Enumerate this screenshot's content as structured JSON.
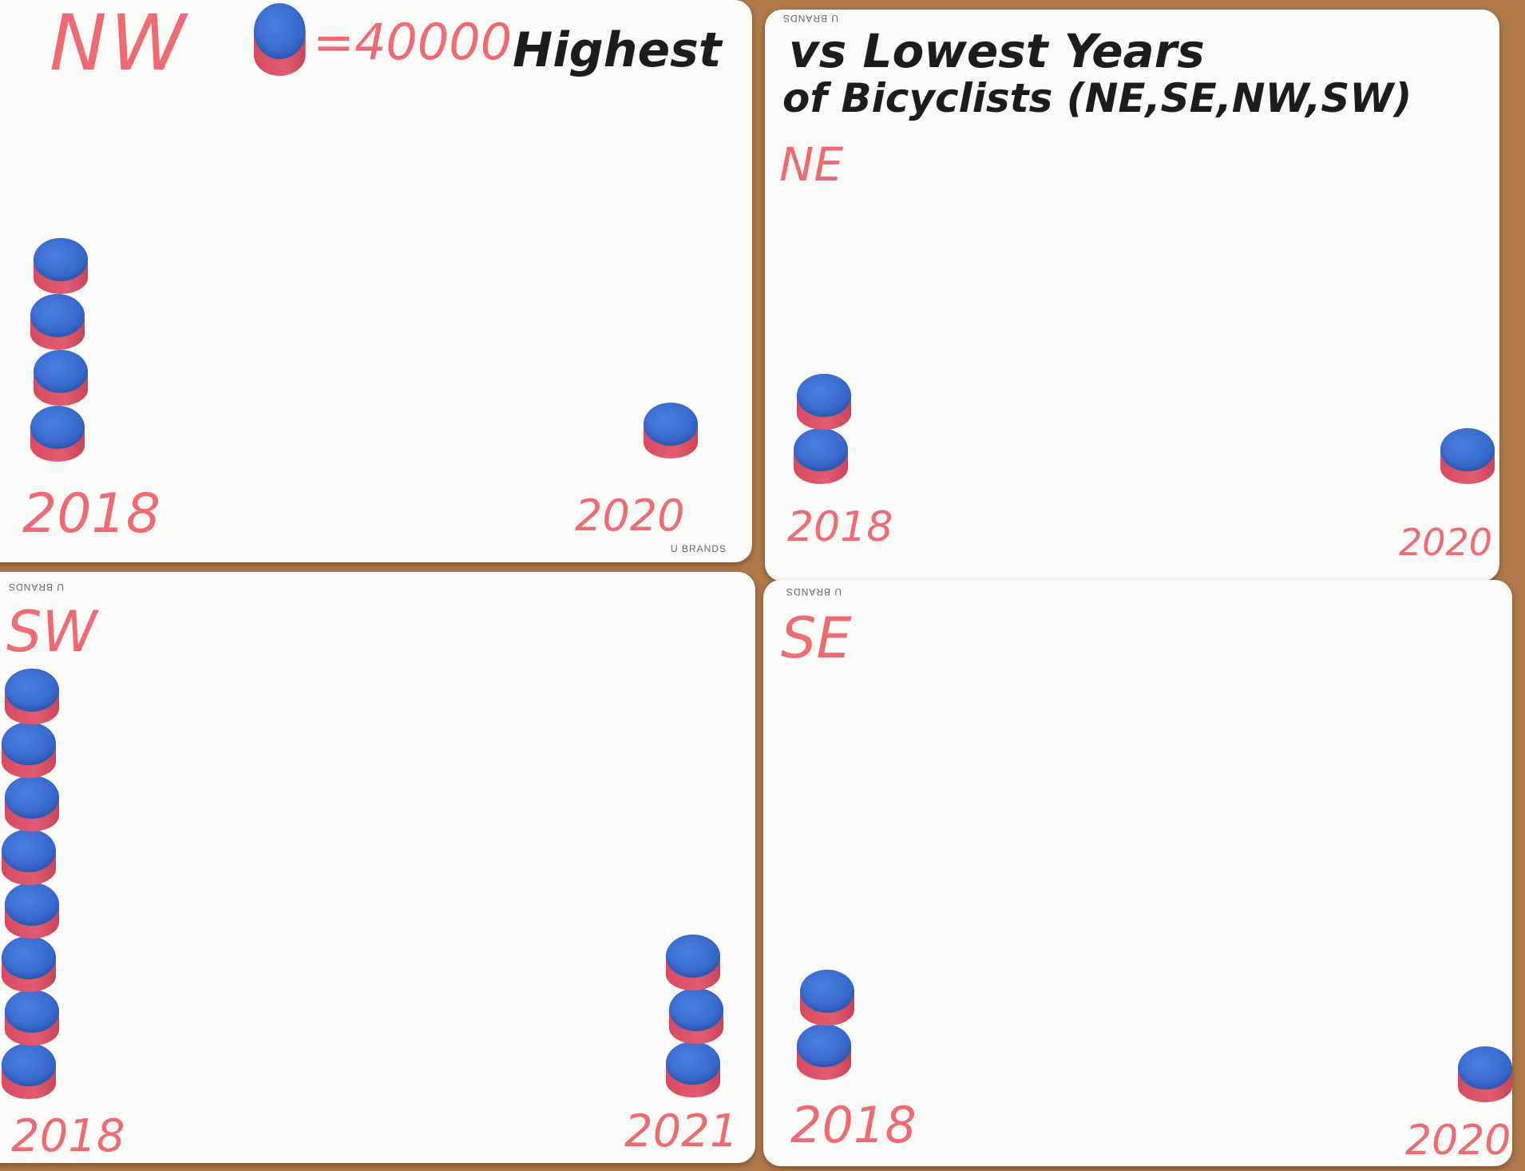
{
  "title": {
    "part1": "Highest",
    "part2": "vs Lowest Years",
    "part3": "of Bicyclists (NE,SE,NW,SW)"
  },
  "legend": {
    "equals_label": "=40000",
    "chip_top_color": "#3565c9",
    "chip_side_color": "#e15c70"
  },
  "brand_label": "U BRANDS",
  "colors": {
    "marker_red": "#ef6a72",
    "ink_black": "#1c1c1c",
    "board_white": "#fbfbf9",
    "table_wood": "#b07a4a"
  },
  "chart_data": [
    {
      "type": "bar",
      "region": "NW",
      "categories": [
        "2018",
        "2020"
      ],
      "values": [
        160000,
        40000
      ],
      "unit_per_chip": 40000
    },
    {
      "type": "bar",
      "region": "NE",
      "categories": [
        "2018",
        "2020"
      ],
      "values": [
        80000,
        40000
      ],
      "unit_per_chip": 40000
    },
    {
      "type": "bar",
      "region": "SW",
      "categories": [
        "2018",
        "2021"
      ],
      "values": [
        320000,
        120000
      ],
      "unit_per_chip": 40000
    },
    {
      "type": "bar",
      "region": "SE",
      "categories": [
        "2018",
        "2020"
      ],
      "values": [
        80000,
        40000
      ],
      "unit_per_chip": 40000
    }
  ]
}
